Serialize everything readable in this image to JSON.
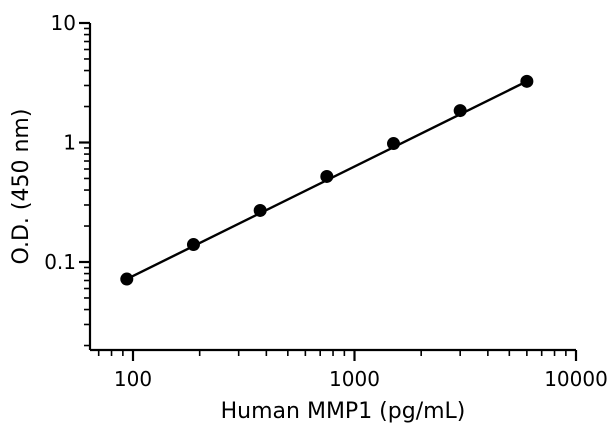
{
  "chart_data": {
    "type": "scatter",
    "title": "",
    "xlabel": "Human MMP1 (pg/mL)",
    "ylabel": "O.D. (450 nm)",
    "x_scale": "log",
    "y_scale": "log",
    "xlim": [
      50,
      10000
    ],
    "ylim": [
      0.03,
      10
    ],
    "x_ticks": [
      100,
      1000,
      10000
    ],
    "x_tick_labels": [
      "100",
      "1000",
      "10000"
    ],
    "y_ticks": [
      0.1,
      1,
      10
    ],
    "y_tick_labels": [
      "0.1",
      "1",
      "10"
    ],
    "grid": false,
    "legend": "none",
    "series": [
      {
        "x": [
          93.75,
          187.5,
          375,
          750,
          1500,
          3000,
          6000
        ],
        "y": [
          0.072,
          0.14,
          0.27,
          0.52,
          0.98,
          1.85,
          3.25
        ]
      }
    ],
    "fit_line": {
      "x": [
        93.75,
        6000
      ],
      "y": [
        0.072,
        3.25
      ]
    },
    "colors": {
      "marker": "#000000",
      "line": "#000000",
      "axis": "#000000"
    }
  }
}
